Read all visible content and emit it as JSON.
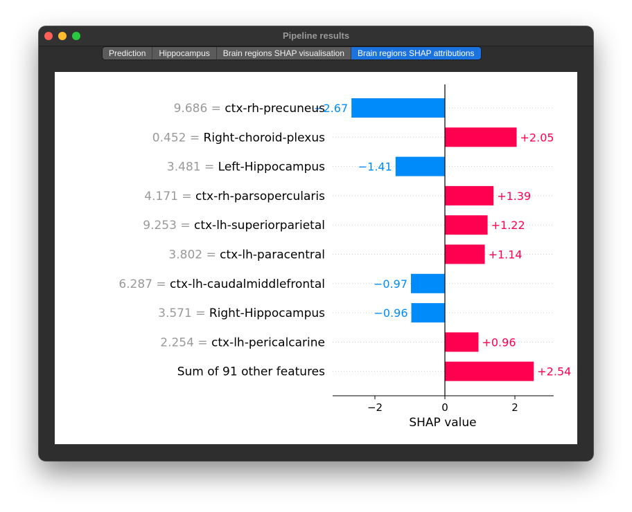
{
  "window": {
    "title": "Pipeline results",
    "controls": [
      "close",
      "minimize",
      "maximize"
    ]
  },
  "tabs": [
    {
      "label": "Prediction",
      "active": false
    },
    {
      "label": "Hippocampus",
      "active": false
    },
    {
      "label": "Brain regions SHAP visualisation",
      "active": false
    },
    {
      "label": "Brain regions SHAP attributions",
      "active": true
    }
  ],
  "chart_data": {
    "type": "bar",
    "orientation": "horizontal",
    "xlabel": "SHAP value",
    "xticks": [
      -2,
      0,
      2
    ],
    "xlim": [
      -3.2,
      3.1
    ],
    "colors": {
      "positive": "#ff0051",
      "negative": "#008bfb",
      "value_text": "#999999"
    },
    "rows": [
      {
        "value_text": "9.686",
        "feature": "ctx-rh-precuneus",
        "shap": -2.67,
        "label": "−2.67"
      },
      {
        "value_text": "0.452",
        "feature": "Right-choroid-plexus",
        "shap": 2.05,
        "label": "+2.05"
      },
      {
        "value_text": "3.481",
        "feature": "Left-Hippocampus",
        "shap": -1.41,
        "label": "−1.41"
      },
      {
        "value_text": "4.171",
        "feature": "ctx-rh-parsopercularis",
        "shap": 1.39,
        "label": "+1.39"
      },
      {
        "value_text": "9.253",
        "feature": "ctx-lh-superiorparietal",
        "shap": 1.22,
        "label": "+1.22"
      },
      {
        "value_text": "3.802",
        "feature": "ctx-lh-paracentral",
        "shap": 1.14,
        "label": "+1.14"
      },
      {
        "value_text": "6.287",
        "feature": "ctx-lh-caudalmiddlefrontal",
        "shap": -0.97,
        "label": "−0.97"
      },
      {
        "value_text": "3.571",
        "feature": "Right-Hippocampus",
        "shap": -0.96,
        "label": "−0.96"
      },
      {
        "value_text": "2.254",
        "feature": "ctx-lh-pericalcarine",
        "shap": 0.96,
        "label": "+0.96"
      },
      {
        "value_text": "",
        "feature": "Sum of 91 other features",
        "shap": 2.54,
        "label": "+2.54"
      }
    ]
  }
}
